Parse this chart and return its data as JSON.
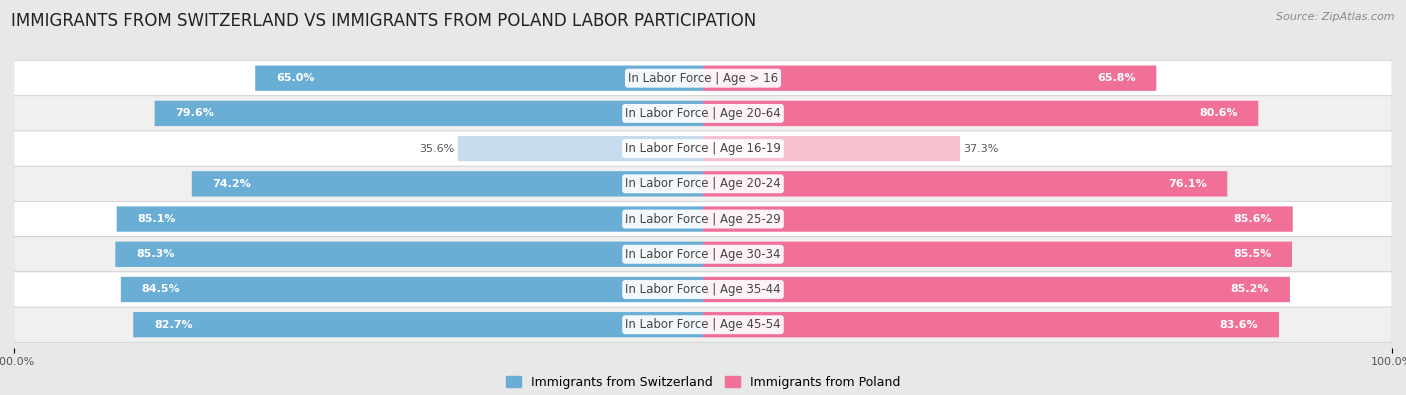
{
  "title": "IMMIGRANTS FROM SWITZERLAND VS IMMIGRANTS FROM POLAND LABOR PARTICIPATION",
  "source": "Source: ZipAtlas.com",
  "categories": [
    "In Labor Force | Age > 16",
    "In Labor Force | Age 20-64",
    "In Labor Force | Age 16-19",
    "In Labor Force | Age 20-24",
    "In Labor Force | Age 25-29",
    "In Labor Force | Age 30-34",
    "In Labor Force | Age 35-44",
    "In Labor Force | Age 45-54"
  ],
  "switzerland_values": [
    65.0,
    79.6,
    35.6,
    74.2,
    85.1,
    85.3,
    84.5,
    82.7
  ],
  "poland_values": [
    65.8,
    80.6,
    37.3,
    76.1,
    85.6,
    85.5,
    85.2,
    83.6
  ],
  "switzerland_color": "#6aaed6",
  "poland_color": "#f07098",
  "switzerland_color_light": "#c6dcee",
  "poland_color_light": "#f9c0d0",
  "legend_switzerland": "Immigrants from Switzerland",
  "legend_poland": "Immigrants from Poland",
  "bg_color": "#e8e8e8",
  "row_bg_even": "#ffffff",
  "row_bg_odd": "#f0f0f0",
  "max_value": 100.0,
  "title_fontsize": 12,
  "label_fontsize": 8.5,
  "value_fontsize": 8,
  "axis_label_fontsize": 8
}
